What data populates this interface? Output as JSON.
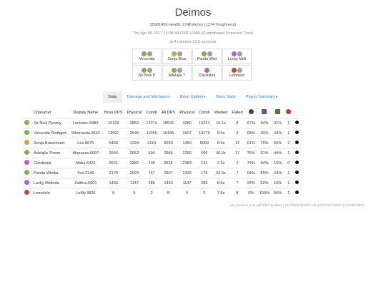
{
  "header": {
    "title": "Deimos",
    "health": "35981456 Health, 2748 Armor (1374 Toughness)",
    "date": "Thu Apr 06 2017 16:38:44 GMT+0000 (Coordinated Universal Time)",
    "duration": "in 4 minutes 53.0 seconds"
  },
  "party": [
    {
      "name": "Vincentia",
      "icons": [
        "#7fb04a",
        "#9aa0a6"
      ]
    },
    {
      "name": "Sonja Brav",
      "icons": [
        "#d6a23a",
        "#9aa0a6"
      ]
    },
    {
      "name": "Panda Wiel",
      "icons": [
        "#7fb04a",
        "#9aa0a6"
      ]
    },
    {
      "name": "Lucky Meli",
      "icons": [
        "#b362c9",
        "#9aa0a6"
      ]
    },
    {
      "name": "Sir Nick P",
      "icons": [
        "#7fb04a",
        "#9aa0a6"
      ]
    },
    {
      "name": "Adelajla T",
      "icons": [
        "#7fb04a",
        "#9aa0a6"
      ]
    },
    {
      "name": "Clautishia",
      "icons": [
        "#b362c9"
      ]
    },
    {
      "name": "Lemolelo",
      "icons": [
        "#b84a3a",
        "#9aa0a6"
      ]
    }
  ],
  "tabs": [
    {
      "label": "Stats",
      "active": true,
      "caret": false
    },
    {
      "label": "Damage and Mechanics",
      "active": false,
      "caret": false
    },
    {
      "label": "Boon Uptime",
      "active": false,
      "caret": true
    },
    {
      "label": "Boon Stats",
      "active": false,
      "caret": false
    },
    {
      "label": "Player Summary",
      "active": false,
      "caret": true
    }
  ],
  "table": {
    "columns": [
      "Character",
      "Display Name",
      "Boss DPS",
      "Physical",
      "Condi",
      "All DPS",
      "Physical",
      "Condi",
      "Wasted",
      "Failed"
    ],
    "icon_columns": [
      {
        "name": "might-icon",
        "color": "#444"
      },
      {
        "name": "quickness-icon",
        "color": "#6a4aa0"
      },
      {
        "name": "fury-icon",
        "color": "#4a7a2a"
      },
      {
        "name": "downed-icon",
        "color": "#c0392b"
      }
    ],
    "rows": [
      {
        "icon": "#7fb04a",
        "character": "Sir Nick Pyszny",
        "display": "Leniwiec.6983",
        "boss_dps": "16126",
        "physical": "2852",
        "condi": "13274",
        "all_dps": "18531",
        "all_physical": "3280",
        "all_condi": "15251",
        "wasted": "10.1s",
        "failed": "8",
        "c1": "67%",
        "c2": "94%",
        "c3": "31%",
        "c4": "1"
      },
      {
        "icon": "#7fb04a",
        "character": "Vincentia Slothgon",
        "display": "Sthenastia.3642",
        "boss_dps": "13597",
        "physical": "2546",
        "condi": "11050",
        "all_dps": "16186",
        "all_physical": "2907",
        "all_condi": "13279",
        "wasted": "8.5s",
        "failed": "9",
        "c1": "68%",
        "c2": "90%",
        "c3": "24%",
        "c4": "1"
      },
      {
        "icon": "#d6a23a",
        "character": "Sonja Braveheart",
        "display": "Lex.8675",
        "boss_dps": "5438",
        "physical": "1324",
        "condi": "4114",
        "all_dps": "6550",
        "all_physical": "1450",
        "all_condi": "5099",
        "wasted": "8.3s",
        "failed": "12",
        "c1": "61%",
        "c2": "75%",
        "c3": "56%",
        "c4": "2"
      },
      {
        "icon": "#7fb04a",
        "character": "Adelajla Thenn",
        "display": "Akyrasss.6097",
        "boss_dps": "2646",
        "physical": "2052",
        "condi": "594",
        "all_dps": "2986",
        "all_physical": "2290",
        "all_condi": "696",
        "wasted": "40.3s",
        "failed": "17",
        "c1": "75%",
        "c2": "91%",
        "c3": "44%",
        "c4": "1"
      },
      {
        "icon": "#b362c9",
        "character": "Clautishia",
        "display": "Maks.6423",
        "boss_dps": "2521",
        "physical": "2382",
        "condi": "139",
        "all_dps": "2524",
        "all_physical": "2383",
        "all_condi": "141",
        "wasted": "2.2s",
        "failed": "2",
        "c1": "74%",
        "c2": "94%",
        "c3": "16%",
        "c4": "0"
      },
      {
        "icon": "#7fb04a",
        "character": "Panda Wielka",
        "display": "Yuri.2140",
        "boss_dps": "2170",
        "physical": "2023",
        "condi": "147",
        "all_dps": "2507",
        "all_physical": "2332",
        "all_condi": "175",
        "wasted": "26.3s",
        "failed": "7",
        "c1": "64%",
        "c2": "89%",
        "c3": "24%",
        "c4": "1"
      },
      {
        "icon": "#b362c9",
        "character": "Lucky Melinda",
        "display": "Zaithra.5901",
        "boss_dps": "1433",
        "physical": "1147",
        "condi": "285",
        "all_dps": "1433",
        "all_physical": "1147",
        "all_condi": "285",
        "wasted": "8.6s",
        "failed": "7",
        "c1": "24%",
        "c2": "92%",
        "c3": "16%",
        "c4": "1"
      },
      {
        "icon": "#b84a3a",
        "character": "Lemolelo",
        "display": "LeMy.3826",
        "boss_dps": "8",
        "physical": "6",
        "condi": "2",
        "all_dps": "8",
        "all_physical": "6",
        "all_condi": "2",
        "wasted": "7.6s",
        "failed": "8",
        "c1": "0%",
        "c2": "100%",
        "c3": "50%",
        "c4": "1"
      }
    ]
  },
  "footer": "raid_heroes-1.1-11-g3f154b7 by Mavi, | 20170406-184337.evtc | EVTC20170327 | 171548/4302)"
}
